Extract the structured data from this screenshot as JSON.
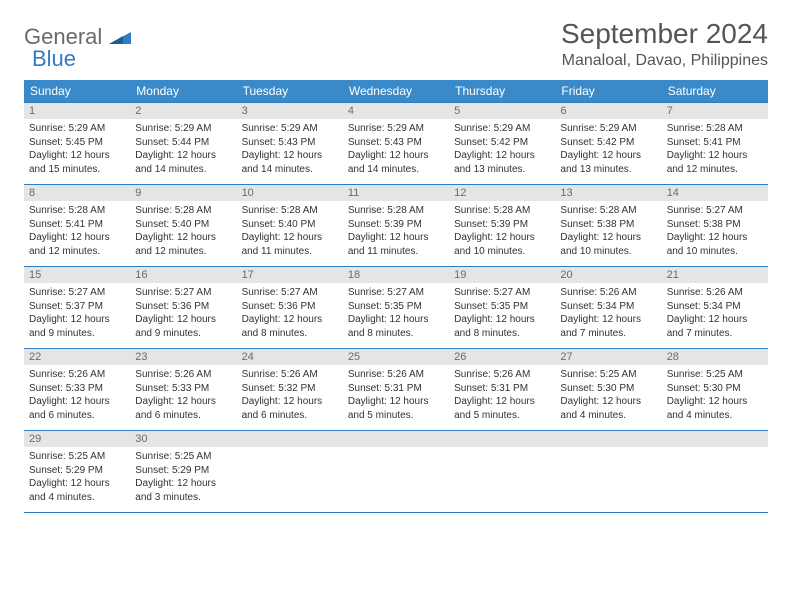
{
  "logo": {
    "text1": "General",
    "text2": "Blue"
  },
  "title": "September 2024",
  "location": "Manaloal, Davao, Philippines",
  "colors": {
    "header_bg": "#3a8ac9",
    "border": "#2e7cc4",
    "daynum_bg": "#e5e5e5",
    "text_gray": "#6b6b6b",
    "brand_blue": "#2e7cc4"
  },
  "weekdays": [
    "Sunday",
    "Monday",
    "Tuesday",
    "Wednesday",
    "Thursday",
    "Friday",
    "Saturday"
  ],
  "days": [
    {
      "n": "1",
      "sunrise": "5:29 AM",
      "sunset": "5:45 PM",
      "daylight": "12 hours and 15 minutes."
    },
    {
      "n": "2",
      "sunrise": "5:29 AM",
      "sunset": "5:44 PM",
      "daylight": "12 hours and 14 minutes."
    },
    {
      "n": "3",
      "sunrise": "5:29 AM",
      "sunset": "5:43 PM",
      "daylight": "12 hours and 14 minutes."
    },
    {
      "n": "4",
      "sunrise": "5:29 AM",
      "sunset": "5:43 PM",
      "daylight": "12 hours and 14 minutes."
    },
    {
      "n": "5",
      "sunrise": "5:29 AM",
      "sunset": "5:42 PM",
      "daylight": "12 hours and 13 minutes."
    },
    {
      "n": "6",
      "sunrise": "5:29 AM",
      "sunset": "5:42 PM",
      "daylight": "12 hours and 13 minutes."
    },
    {
      "n": "7",
      "sunrise": "5:28 AM",
      "sunset": "5:41 PM",
      "daylight": "12 hours and 12 minutes."
    },
    {
      "n": "8",
      "sunrise": "5:28 AM",
      "sunset": "5:41 PM",
      "daylight": "12 hours and 12 minutes."
    },
    {
      "n": "9",
      "sunrise": "5:28 AM",
      "sunset": "5:40 PM",
      "daylight": "12 hours and 12 minutes."
    },
    {
      "n": "10",
      "sunrise": "5:28 AM",
      "sunset": "5:40 PM",
      "daylight": "12 hours and 11 minutes."
    },
    {
      "n": "11",
      "sunrise": "5:28 AM",
      "sunset": "5:39 PM",
      "daylight": "12 hours and 11 minutes."
    },
    {
      "n": "12",
      "sunrise": "5:28 AM",
      "sunset": "5:39 PM",
      "daylight": "12 hours and 10 minutes."
    },
    {
      "n": "13",
      "sunrise": "5:28 AM",
      "sunset": "5:38 PM",
      "daylight": "12 hours and 10 minutes."
    },
    {
      "n": "14",
      "sunrise": "5:27 AM",
      "sunset": "5:38 PM",
      "daylight": "12 hours and 10 minutes."
    },
    {
      "n": "15",
      "sunrise": "5:27 AM",
      "sunset": "5:37 PM",
      "daylight": "12 hours and 9 minutes."
    },
    {
      "n": "16",
      "sunrise": "5:27 AM",
      "sunset": "5:36 PM",
      "daylight": "12 hours and 9 minutes."
    },
    {
      "n": "17",
      "sunrise": "5:27 AM",
      "sunset": "5:36 PM",
      "daylight": "12 hours and 8 minutes."
    },
    {
      "n": "18",
      "sunrise": "5:27 AM",
      "sunset": "5:35 PM",
      "daylight": "12 hours and 8 minutes."
    },
    {
      "n": "19",
      "sunrise": "5:27 AM",
      "sunset": "5:35 PM",
      "daylight": "12 hours and 8 minutes."
    },
    {
      "n": "20",
      "sunrise": "5:26 AM",
      "sunset": "5:34 PM",
      "daylight": "12 hours and 7 minutes."
    },
    {
      "n": "21",
      "sunrise": "5:26 AM",
      "sunset": "5:34 PM",
      "daylight": "12 hours and 7 minutes."
    },
    {
      "n": "22",
      "sunrise": "5:26 AM",
      "sunset": "5:33 PM",
      "daylight": "12 hours and 6 minutes."
    },
    {
      "n": "23",
      "sunrise": "5:26 AM",
      "sunset": "5:33 PM",
      "daylight": "12 hours and 6 minutes."
    },
    {
      "n": "24",
      "sunrise": "5:26 AM",
      "sunset": "5:32 PM",
      "daylight": "12 hours and 6 minutes."
    },
    {
      "n": "25",
      "sunrise": "5:26 AM",
      "sunset": "5:31 PM",
      "daylight": "12 hours and 5 minutes."
    },
    {
      "n": "26",
      "sunrise": "5:26 AM",
      "sunset": "5:31 PM",
      "daylight": "12 hours and 5 minutes."
    },
    {
      "n": "27",
      "sunrise": "5:25 AM",
      "sunset": "5:30 PM",
      "daylight": "12 hours and 4 minutes."
    },
    {
      "n": "28",
      "sunrise": "5:25 AM",
      "sunset": "5:30 PM",
      "daylight": "12 hours and 4 minutes."
    },
    {
      "n": "29",
      "sunrise": "5:25 AM",
      "sunset": "5:29 PM",
      "daylight": "12 hours and 4 minutes."
    },
    {
      "n": "30",
      "sunrise": "5:25 AM",
      "sunset": "5:29 PM",
      "daylight": "12 hours and 3 minutes."
    }
  ],
  "labels": {
    "sunrise": "Sunrise:",
    "sunset": "Sunset:",
    "daylight": "Daylight:"
  }
}
